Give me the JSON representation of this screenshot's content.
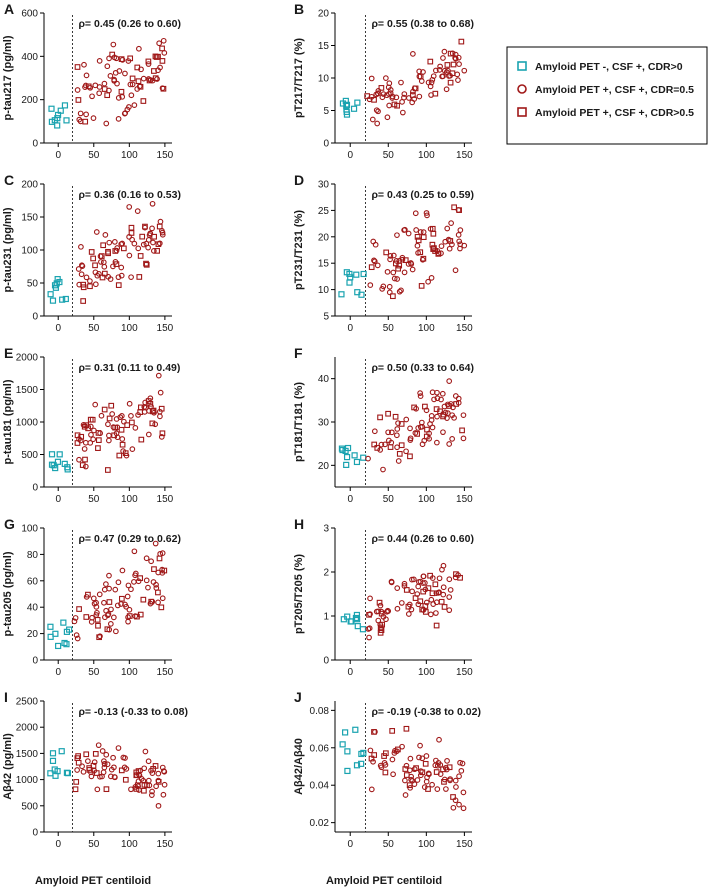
{
  "figure": {
    "x_axis_label": "Amyloid PET centiloid",
    "legend": [
      {
        "label": "Amyloid PET -, CSF +, CDR>0",
        "color": "#1aa3b0",
        "marker": "square"
      },
      {
        "label": "Amyloid PET +, CSF +, CDR=0.5",
        "color": "#a01818",
        "marker": "circle"
      },
      {
        "label": "Amyloid PET +, CSF +, CDR>0.5",
        "color": "#a01818",
        "marker": "square"
      }
    ]
  },
  "chart_data": [
    {
      "type": "scatter",
      "panel": "A",
      "ylabel": "p-tau217 (pg/ml)",
      "rho": "ρ= 0.45 (0.26 to 0.60)",
      "xlim": [
        -20,
        160
      ],
      "ylim": [
        0,
        600
      ],
      "xticks": [
        0,
        50,
        100,
        150
      ],
      "yticks": [
        0,
        200,
        400,
        600
      ],
      "threshold_x": 20,
      "ymin_ratio": 0.08,
      "ymax_ratio": 0.88,
      "slope": 0.45,
      "seed": 11
    },
    {
      "type": "scatter",
      "panel": "B",
      "ylabel": "pT217/T217 (%)",
      "rho": "ρ= 0.55 (0.38 to 0.68)",
      "xlim": [
        -20,
        160
      ],
      "ylim": [
        0,
        20
      ],
      "xticks": [
        0,
        50,
        100,
        150
      ],
      "yticks": [
        0,
        5,
        10,
        15,
        20
      ],
      "threshold_x": 20,
      "ymin_ratio": 0.15,
      "ymax_ratio": 0.78,
      "slope": 0.55,
      "seed": 23
    },
    {
      "type": "scatter",
      "panel": "C",
      "ylabel": "p-tau231 (pg/ml)",
      "rho": "ρ= 0.36 (0.16 to 0.53)",
      "xlim": [
        -20,
        160
      ],
      "ylim": [
        0,
        200
      ],
      "xticks": [
        0,
        50,
        100,
        150
      ],
      "yticks": [
        0,
        50,
        100,
        150,
        200
      ],
      "threshold_x": 20,
      "ymin_ratio": 0.07,
      "ymax_ratio": 0.85,
      "slope": 0.36,
      "seed": 37
    },
    {
      "type": "scatter",
      "panel": "D",
      "ylabel": "pT231/T231 (%)",
      "rho": "ρ= 0.43 (0.25 to 0.59)",
      "xlim": [
        -20,
        160
      ],
      "ylim": [
        5,
        30
      ],
      "xticks": [
        0,
        50,
        100,
        150
      ],
      "yticks": [
        5,
        10,
        15,
        20,
        25,
        30
      ],
      "threshold_x": 20,
      "ymin_ratio": 0.08,
      "ymax_ratio": 0.92,
      "slope": 0.43,
      "seed": 41
    },
    {
      "type": "scatter",
      "panel": "E",
      "ylabel": "p-tau181 (pg/ml)",
      "rho": "ρ= 0.31 (0.11 to 0.49)",
      "xlim": [
        -20,
        160
      ],
      "ylim": [
        0,
        2000
      ],
      "xticks": [
        0,
        50,
        100,
        150
      ],
      "yticks": [
        0,
        500,
        1000,
        1500,
        2000
      ],
      "threshold_x": 20,
      "ymin_ratio": 0.09,
      "ymax_ratio": 0.87,
      "slope": 0.31,
      "seed": 53
    },
    {
      "type": "scatter",
      "panel": "F",
      "ylabel": "pT181/T181 (%)",
      "rho": "ρ= 0.50 (0.33 to 0.64)",
      "xlim": [
        -20,
        160
      ],
      "ylim": [
        15,
        45
      ],
      "xticks": [
        0,
        50,
        100,
        150
      ],
      "yticks": [
        20,
        30,
        40
      ],
      "threshold_x": 20,
      "ymin_ratio": 0.13,
      "ymax_ratio": 0.85,
      "slope": 0.5,
      "seed": 67
    },
    {
      "type": "scatter",
      "panel": "G",
      "ylabel": "p-tau205 (pg/ml)",
      "rho": "ρ= 0.47 (0.29 to 0.62)",
      "xlim": [
        -20,
        160
      ],
      "ylim": [
        0,
        100
      ],
      "xticks": [
        0,
        50,
        100,
        150
      ],
      "yticks": [
        0,
        20,
        40,
        60,
        80,
        100
      ],
      "threshold_x": 20,
      "ymin_ratio": 0.06,
      "ymax_ratio": 0.92,
      "slope": 0.47,
      "seed": 79
    },
    {
      "type": "scatter",
      "panel": "H",
      "ylabel": "pT205/T205 (%)",
      "rho": "ρ= 0.44 (0.26 to 0.60)",
      "xlim": [
        -20,
        160
      ],
      "ylim": [
        0,
        3
      ],
      "xticks": [
        0,
        50,
        100,
        150
      ],
      "yticks": [
        0,
        1,
        2,
        3
      ],
      "threshold_x": 20,
      "ymin_ratio": 0.17,
      "ymax_ratio": 0.8,
      "slope": 0.44,
      "seed": 83
    },
    {
      "type": "scatter",
      "panel": "I",
      "ylabel": "Aβ42 (pg/ml)",
      "rho": "ρ= -0.13 (-0.33 to 0.08)",
      "xlim": [
        -20,
        160
      ],
      "ylim": [
        0,
        2500
      ],
      "xticks": [
        0,
        50,
        100,
        150
      ],
      "yticks": [
        0,
        500,
        1000,
        1500,
        2000,
        2500
      ],
      "threshold_x": 20,
      "ymin_ratio": 0.17,
      "ymax_ratio": 0.7,
      "slope": -0.13,
      "seed": 97
    },
    {
      "type": "scatter",
      "panel": "J",
      "ylabel": "Aβ42/Aβ40",
      "rho": "ρ= -0.19 (-0.38 to 0.02)",
      "xlim": [
        -20,
        160
      ],
      "ylim": [
        0.015,
        0.085
      ],
      "xticks": [
        0,
        50,
        100,
        150
      ],
      "yticks": [
        0.02,
        0.04,
        0.06,
        0.08
      ],
      "threshold_x": 20,
      "ymin_ratio": 0.14,
      "ymax_ratio": 0.85,
      "slope": -0.19,
      "seed": 101
    }
  ]
}
